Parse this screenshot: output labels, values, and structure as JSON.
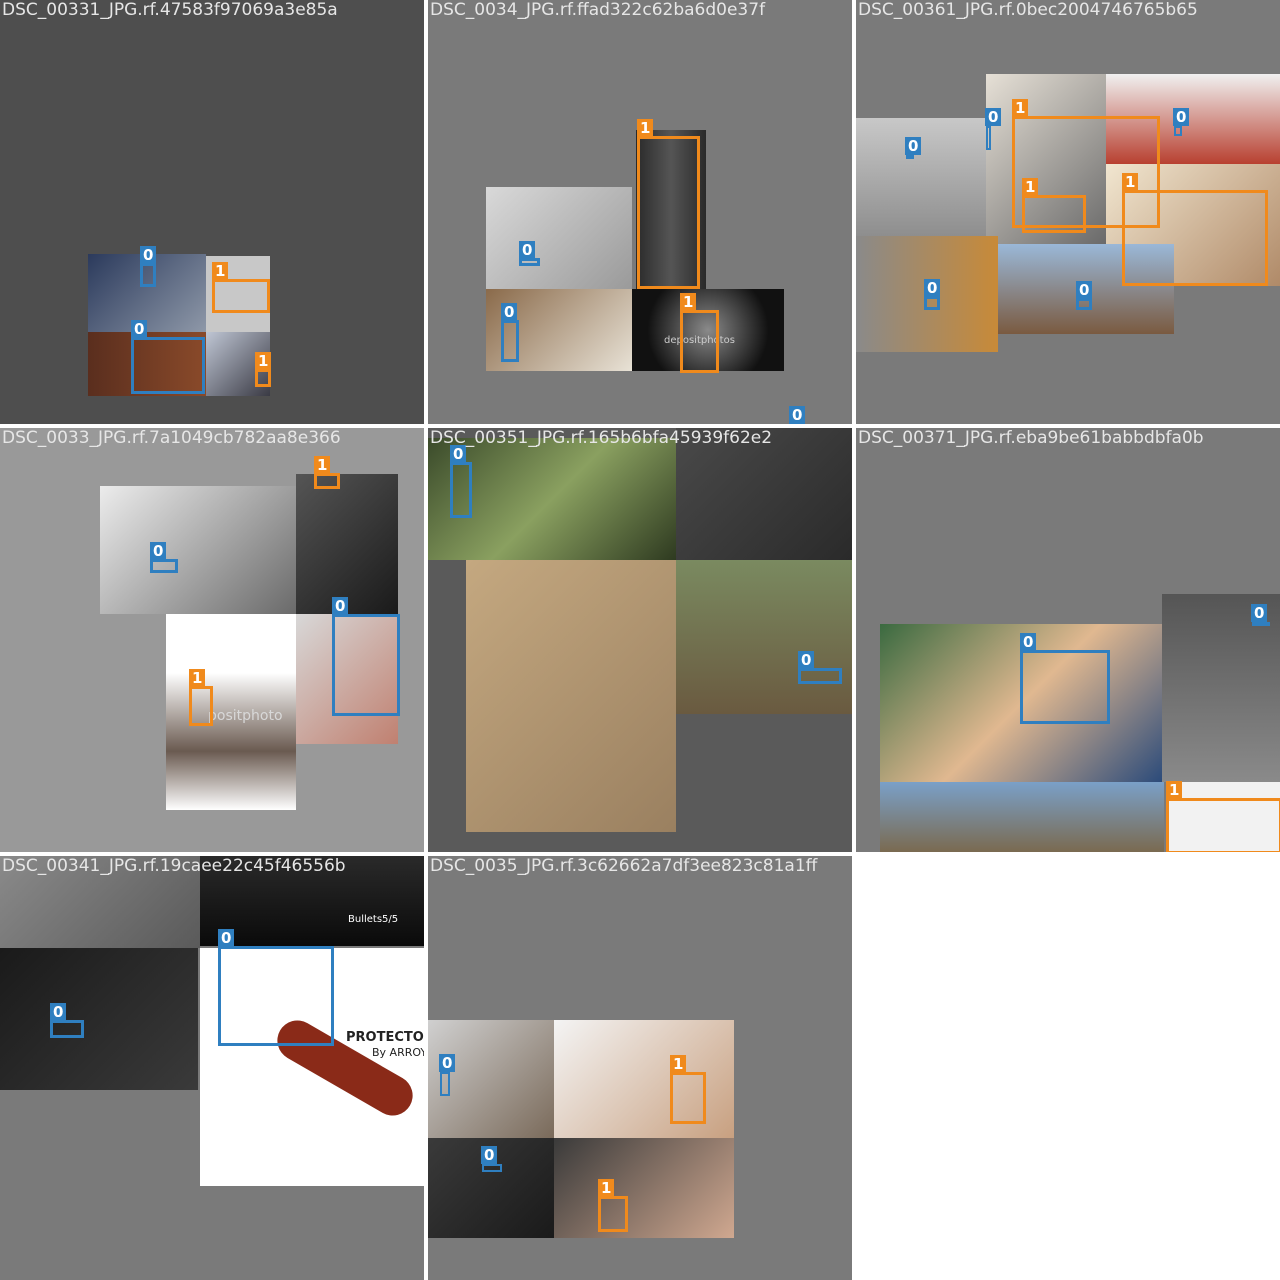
{
  "tiles": [
    {
      "title": "DSC_00331_JPG.rf.47583f97069a3e85a",
      "bg": "#4e4e4e"
    },
    {
      "title": "DSC_0034_JPG.rf.ffad322c62ba6d0e37f",
      "bg": "#7a7a7a"
    },
    {
      "title": "DSC_00361_JPG.rf.0bec2004746765b65",
      "bg": "#7a7a7a"
    },
    {
      "title": "DSC_0033_JPG.rf.7a1049cb782aa8e366",
      "bg": "#999999"
    },
    {
      "title": "DSC_00351_JPG.rf.165b6bfa45939f62e2",
      "bg": "#5a5a5a"
    },
    {
      "title": "DSC_00371_JPG.rf.eba9be61babbdbfa0b",
      "bg": "#7a7a7a"
    },
    {
      "title": "DSC_00341_JPG.rf.19caee22c45f46556b",
      "bg": "#7a7a7a"
    },
    {
      "title": "DSC_0035_JPG.rf.3c62662a7df3ee823c81a1ff",
      "bg": "#7a7a7a"
    }
  ],
  "class_labels": {
    "zero": "0",
    "one": "1"
  },
  "photo_text": {
    "watermark_a": "depositphotos",
    "watermark_b": "positphoto",
    "bullets": "Bullets5/5",
    "brand": "PROTECTOR",
    "brand_sub": "By ARROYO"
  },
  "colors": {
    "class0": "#2f7fc0",
    "class1": "#f08a1c"
  }
}
